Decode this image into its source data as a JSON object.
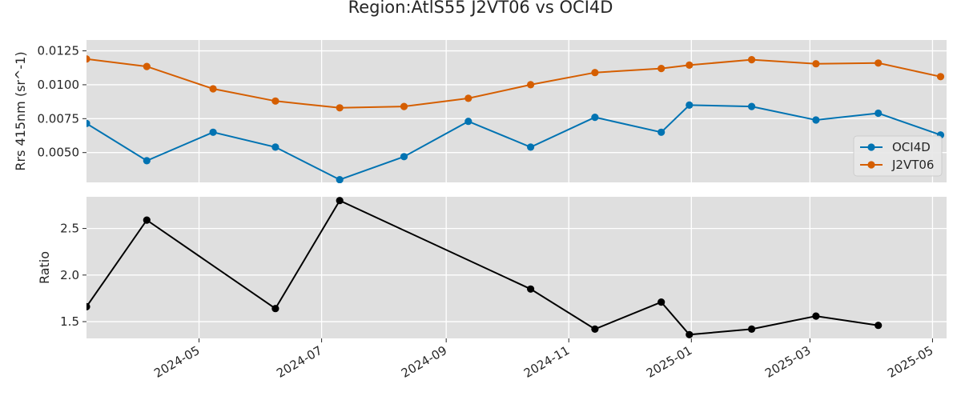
{
  "chart_data": {
    "type": "line",
    "title": "Region:AtlS55 J2VT06 vs OCI4D",
    "panels": [
      {
        "id": "top",
        "ylabel": "Rrs 415nm (sr^-1)",
        "ylim": [
          0.0028,
          0.0133
        ],
        "yticks": [
          0.005,
          0.0075,
          0.01,
          0.0125
        ],
        "ytick_labels": [
          "0.0050",
          "0.0075",
          "0.0100",
          "0.0125"
        ],
        "legend": "lower-right",
        "series": [
          {
            "name": "OCI4D",
            "color": "#0173b2",
            "points": [
              [
                "2024-03-06",
                0.00715
              ],
              [
                "2024-04-05",
                0.0044
              ],
              [
                "2024-05-08",
                0.0065
              ],
              [
                "2024-06-08",
                0.0054
              ],
              [
                "2024-07-10",
                0.003
              ],
              [
                "2024-08-11",
                0.0047
              ],
              [
                "2024-09-12",
                0.0073
              ],
              [
                "2024-10-13",
                0.0054
              ],
              [
                "2024-11-14",
                0.0076
              ],
              [
                "2024-12-17",
                0.0065
              ],
              [
                "2024-12-31",
                0.0085
              ],
              [
                "2025-01-31",
                0.0084
              ],
              [
                "2025-03-04",
                0.0074
              ],
              [
                "2025-04-04",
                0.0079
              ],
              [
                "2025-05-05",
                0.0063
              ]
            ]
          },
          {
            "name": "J2VT06",
            "color": "#d55e00",
            "points": [
              [
                "2024-03-06",
                0.0119
              ],
              [
                "2024-04-05",
                0.01135
              ],
              [
                "2024-05-08",
                0.0097
              ],
              [
                "2024-06-08",
                0.0088
              ],
              [
                "2024-07-10",
                0.0083
              ],
              [
                "2024-08-11",
                0.0084
              ],
              [
                "2024-09-12",
                0.009
              ],
              [
                "2024-10-13",
                0.01
              ],
              [
                "2024-11-14",
                0.0109
              ],
              [
                "2024-12-17",
                0.0112
              ],
              [
                "2024-12-31",
                0.01145
              ],
              [
                "2025-01-31",
                0.01185
              ],
              [
                "2025-03-04",
                0.01155
              ],
              [
                "2025-04-04",
                0.0116
              ],
              [
                "2025-05-05",
                0.0106
              ]
            ]
          }
        ]
      },
      {
        "id": "bottom",
        "ylabel": "Ratio",
        "ylim": [
          1.32,
          2.84
        ],
        "yticks": [
          1.5,
          2.0,
          2.5
        ],
        "ytick_labels": [
          "1.5",
          "2.0",
          "2.5"
        ],
        "series": [
          {
            "name": "",
            "color": "#000000",
            "points": [
              [
                "2024-03-06",
                1.66
              ],
              [
                "2024-04-05",
                2.59
              ],
              [
                "2024-06-08",
                1.64
              ],
              [
                "2024-07-10",
                2.8
              ],
              [
                "2024-10-13",
                1.85
              ],
              [
                "2024-11-14",
                1.42
              ],
              [
                "2024-12-17",
                1.71
              ],
              [
                "2024-12-31",
                1.36
              ],
              [
                "2025-01-31",
                1.42
              ],
              [
                "2025-03-04",
                1.56
              ],
              [
                "2025-04-04",
                1.46
              ]
            ]
          }
        ]
      }
    ],
    "xlim": [
      "2024-03-06",
      "2025-05-08"
    ],
    "xticks": [
      "2024-05-01",
      "2024-07-01",
      "2024-09-01",
      "2024-11-01",
      "2025-01-01",
      "2025-03-01",
      "2025-05-01"
    ],
    "xtick_labels": [
      "2024-05",
      "2024-07",
      "2024-09",
      "2024-11",
      "2025-01",
      "2025-03",
      "2025-05"
    ],
    "grid": true,
    "background": "#dfdfdf"
  }
}
